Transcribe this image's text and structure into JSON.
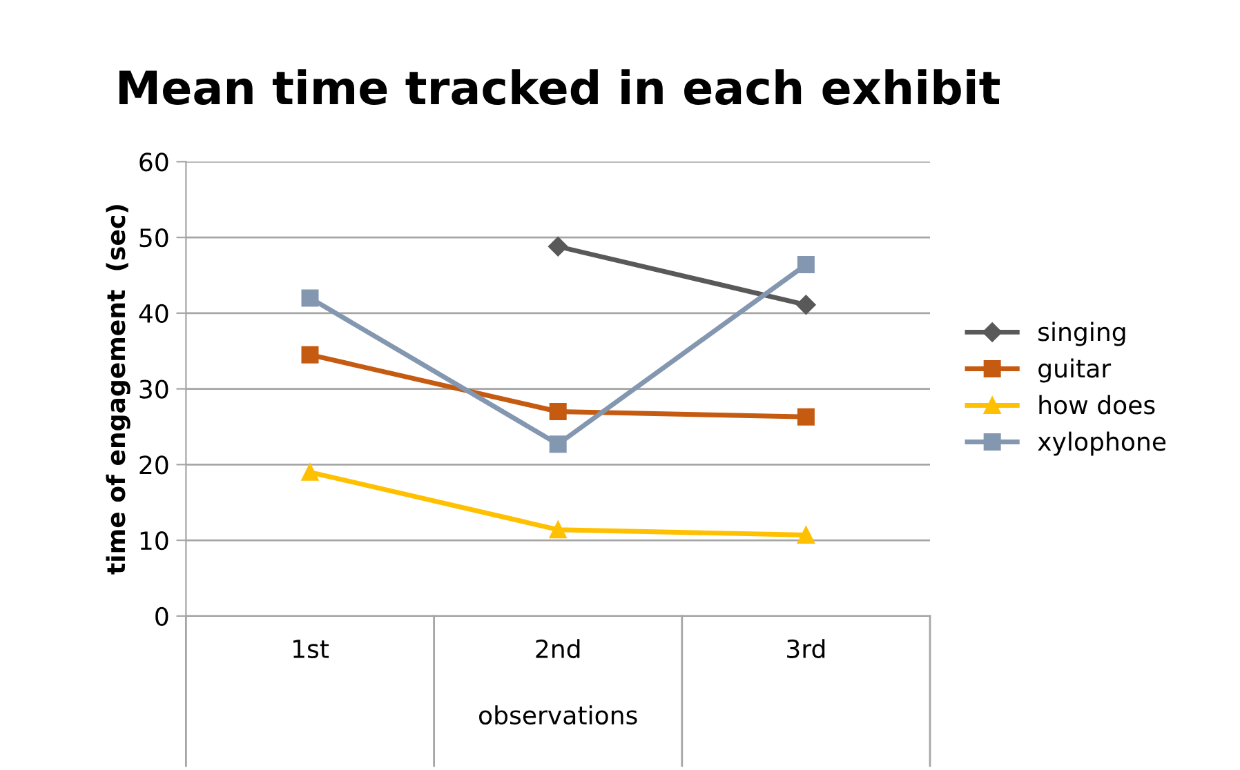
{
  "chart_data": {
    "type": "line",
    "title": "Mean time tracked in each exhibit",
    "xlabel": "observations",
    "ylabel": "time of engagement  (sec)",
    "categories": [
      "1st",
      "2nd",
      "3rd"
    ],
    "series": [
      {
        "name": "singing",
        "color": "#595959",
        "marker": "diamond",
        "values": [
          null,
          48.8,
          41.1
        ]
      },
      {
        "name": "guitar",
        "color": "#c55a11",
        "marker": "square",
        "values": [
          34.5,
          27.0,
          26.3
        ]
      },
      {
        "name": "how does",
        "color": "#ffc000",
        "marker": "triangle",
        "values": [
          19.0,
          11.4,
          10.7
        ]
      },
      {
        "name": "xylophone",
        "color": "#8497b0",
        "marker": "square",
        "values": [
          42.0,
          22.7,
          46.4
        ]
      }
    ],
    "ylim": [
      0,
      60
    ],
    "yticks": [
      0,
      10,
      20,
      30,
      40,
      50,
      60
    ],
    "grid": "y",
    "legend": "right",
    "line_style": "solid"
  }
}
